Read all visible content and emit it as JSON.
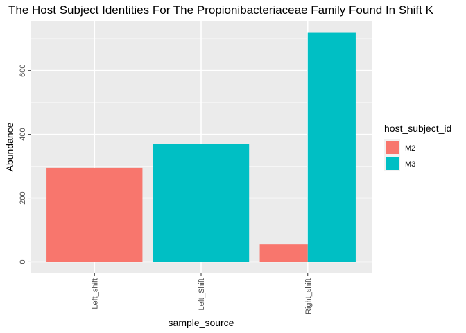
{
  "chart_data": {
    "type": "bar",
    "layout": "dodge",
    "title": "The Host Subject Identities For The Propionibacteriaceae Family Found In Shift K",
    "xlabel": "sample_source",
    "ylabel": "Abundance",
    "categories": [
      "Left_shift",
      "Left_Shift",
      "Right_shift"
    ],
    "yticks": [
      0,
      200,
      400,
      600
    ],
    "ylim": [
      -36,
      756
    ],
    "grid": true,
    "legend": {
      "title": "host_subject_id",
      "position": "right",
      "entries": [
        {
          "name": "M2",
          "color": "#F8766D"
        },
        {
          "name": "M3",
          "color": "#00BFC4"
        }
      ]
    },
    "bars": [
      {
        "category": "Left_shift",
        "group": "M2",
        "value": 295,
        "slots": 1,
        "slot": 0
      },
      {
        "category": "Left_Shift",
        "group": "M3",
        "value": 370,
        "slots": 1,
        "slot": 0
      },
      {
        "category": "Right_shift",
        "group": "M2",
        "value": 55,
        "slots": 2,
        "slot": 0
      },
      {
        "category": "Right_shift",
        "group": "M3",
        "value": 720,
        "slots": 2,
        "slot": 1
      }
    ]
  }
}
